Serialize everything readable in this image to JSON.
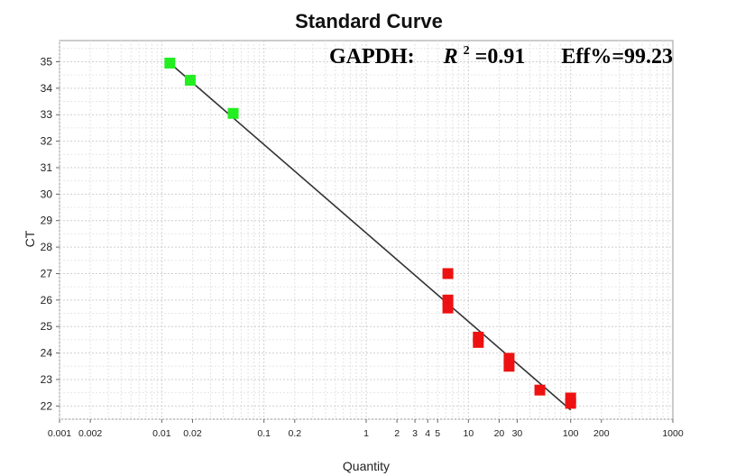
{
  "chart_data": {
    "type": "scatter",
    "title": "Standard Curve",
    "xlabel": "Quantity",
    "ylabel": "CT",
    "xscale": "log",
    "xlim": [
      0.001,
      1000
    ],
    "ylim": [
      21.5,
      35.8
    ],
    "grid": true,
    "x_tick_labels": [
      "0.001",
      "0.002",
      "0.01",
      "0.02",
      "0.1",
      "0.2",
      "1",
      "2",
      "3",
      "4",
      "5",
      "10",
      "20",
      "30",
      "100",
      "200",
      "1000"
    ],
    "y_tick_labels": [
      "22",
      "23",
      "24",
      "25",
      "26",
      "27",
      "28",
      "29",
      "30",
      "31",
      "32",
      "33",
      "34",
      "35"
    ],
    "annotation": {
      "gene": "GAPDH:",
      "r2_symbol": "R",
      "r2_sup": "2",
      "r2_value": "=0.91",
      "eff": "Eff%=99.23"
    },
    "fit_line": {
      "x": [
        0.012,
        100
      ],
      "y": [
        34.95,
        21.85
      ],
      "color": "#333333"
    },
    "series": [
      {
        "color": "#22ee22",
        "points": [
          {
            "x": 0.012,
            "y": 34.95
          },
          {
            "x": 0.019,
            "y": 34.3
          },
          {
            "x": 0.05,
            "y": 33.05
          }
        ]
      },
      {
        "color": "#ee1111",
        "points": [
          {
            "x": 6.3,
            "y": 27.0
          },
          {
            "x": 6.3,
            "y": 26.0
          },
          {
            "x": 6.3,
            "y": 25.7
          },
          {
            "x": 12.5,
            "y": 24.6
          },
          {
            "x": 12.5,
            "y": 24.4
          },
          {
            "x": 25,
            "y": 23.8
          },
          {
            "x": 25,
            "y": 23.5
          },
          {
            "x": 50,
            "y": 22.6
          },
          {
            "x": 100,
            "y": 22.3
          },
          {
            "x": 100,
            "y": 22.1
          }
        ]
      }
    ]
  }
}
